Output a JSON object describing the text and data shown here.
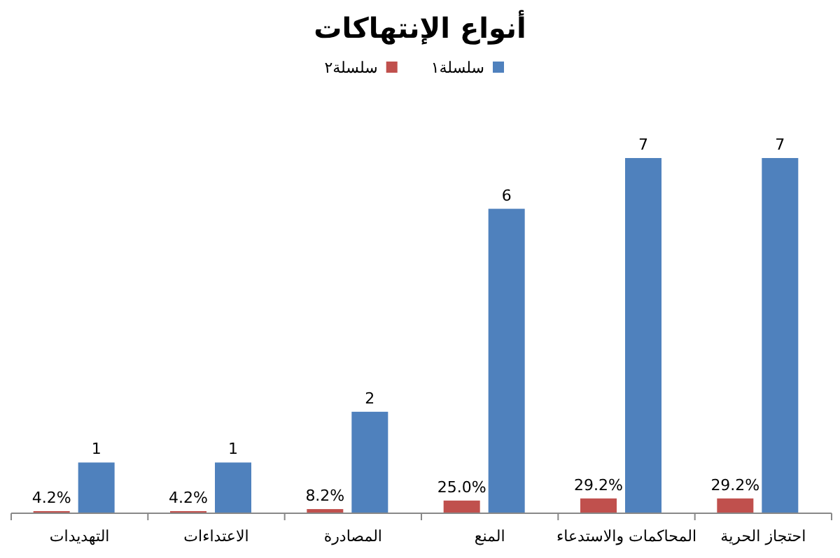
{
  "chart_data": {
    "type": "bar",
    "title": "أنواع الإنتهاكات",
    "categories": [
      "التهديدات",
      "الاعتداءات",
      "المصادرة",
      "المنع",
      "المحاكمات والاستدعاء",
      "احتجاز الحرية"
    ],
    "series": [
      {
        "name": "سلسلة١",
        "color": "#4f81bd",
        "values": [
          1,
          1,
          2,
          6,
          7,
          7
        ],
        "value_labels": [
          "1",
          "1",
          "2",
          "6",
          "7",
          "7"
        ]
      },
      {
        "name": "سلسلة٢",
        "color": "#c0504d",
        "values": [
          0.042,
          0.042,
          0.082,
          0.25,
          0.292,
          0.292
        ],
        "value_labels": [
          "4.2%",
          "4.2%",
          "8.2%",
          "25.0%",
          "29.2%",
          "29.2%"
        ]
      }
    ],
    "tick_labels": "x",
    "legend": "top"
  }
}
